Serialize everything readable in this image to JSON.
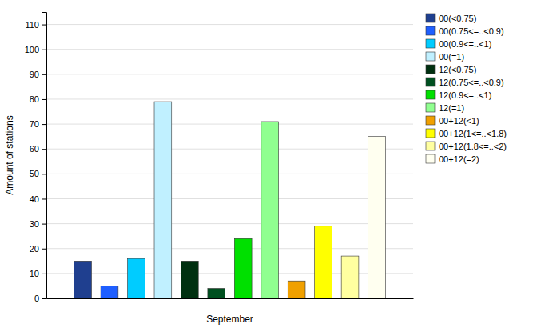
{
  "chart_data": {
    "type": "bar",
    "xlabel": "September",
    "ylabel": "Amount of stations",
    "categories": [
      null
    ],
    "series": [
      {
        "name": "00(<0.75)",
        "color": "#1f3f8f",
        "values": [
          15
        ]
      },
      {
        "name": "00(0.75<=..<0.9)",
        "color": "#1f5fff",
        "values": [
          5
        ]
      },
      {
        "name": "00(0.9<=..<1)",
        "color": "#00ccff",
        "values": [
          16
        ]
      },
      {
        "name": "00(=1)",
        "color": "#c0f0ff",
        "values": [
          79
        ]
      },
      {
        "name": "12(<0.75)",
        "color": "#003010",
        "values": [
          15
        ]
      },
      {
        "name": "12(0.75<=..<0.9)",
        "color": "#005020",
        "values": [
          4
        ]
      },
      {
        "name": "12(0.9<=..<1)",
        "color": "#00e000",
        "values": [
          24
        ]
      },
      {
        "name": "12(=1)",
        "color": "#90ff90",
        "values": [
          71
        ]
      },
      {
        "name": "00+12(<1)",
        "color": "#f0a000",
        "values": [
          7
        ]
      },
      {
        "name": "00+12(1<=..<1.8)",
        "color": "#ffff00",
        "values": [
          29
        ]
      },
      {
        "name": "00+12(1.8<=..<2)",
        "color": "#ffffa0",
        "values": [
          17
        ]
      },
      {
        "name": "00+12(=2)",
        "color": "#fffff0",
        "values": [
          65
        ]
      }
    ],
    "ylim": [
      0,
      115
    ],
    "yticks": [
      0,
      10,
      20,
      30,
      40,
      50,
      60,
      70,
      80,
      90,
      100,
      110
    ],
    "grid": true,
    "legend": "upper right",
    "tick_labels": "y"
  }
}
